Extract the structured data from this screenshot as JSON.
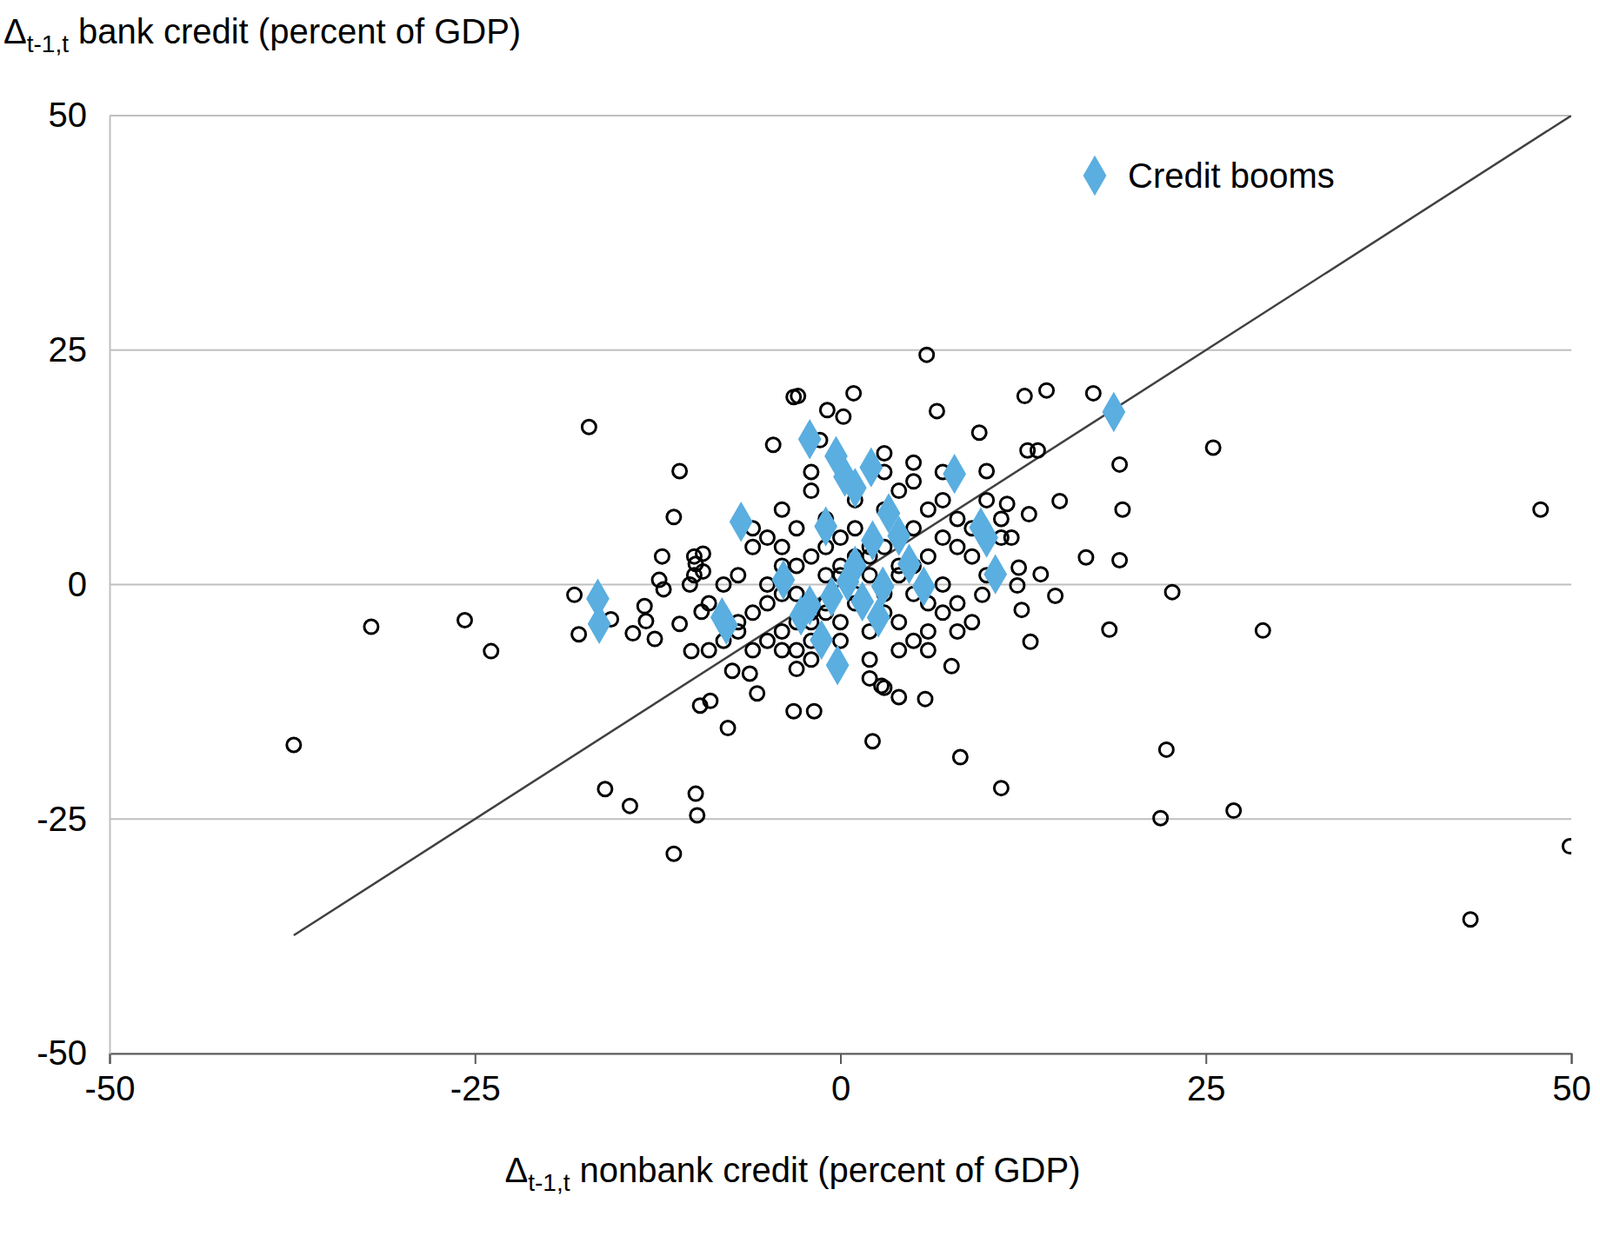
{
  "chart_data": {
    "type": "scatter",
    "x_label": "Δt-1,t nonbank credit (percent of GDP)",
    "y_label": "Δt-1,t bank credit (percent of GDP)",
    "xlim": [
      -50,
      50
    ],
    "ylim": [
      -50,
      50
    ],
    "xticks": [
      -50,
      -25,
      0,
      25,
      50
    ],
    "yticks": [
      -50,
      -25,
      0,
      25,
      50
    ],
    "grid": "y",
    "legend": "upper right",
    "series": [
      {
        "type": "line",
        "color": "#404040",
        "line_style": "solid",
        "x": [
          -37.4,
          50
        ],
        "values": [
          -37.4,
          50
        ]
      },
      {
        "type": "scatter",
        "color": "#000000",
        "marker": "circle",
        "x": [
          -37.4,
          -32.1,
          -25.7,
          -23.9,
          -17.2,
          -18.2,
          -17.9,
          -15.7,
          -16.1,
          -14.4,
          -14.2,
          -13.4,
          -13.3,
          -12.4,
          -12.2,
          -12.1,
          -12.7,
          -11.0,
          -11.4,
          -11.0,
          -11.4,
          -9.9,
          -9.8,
          -9.6,
          -8.9,
          -7.7,
          -10.2,
          -9.5,
          -10.3,
          -9.9,
          -9.4,
          -9.4,
          -7.4,
          -6.2,
          -5.7,
          -4.6,
          -3.2,
          -2.9,
          -3.2,
          -1.8,
          -0.9,
          0.2,
          0.9,
          -1.4,
          2.2,
          2.8,
          5.9,
          6.6,
          9.5,
          12.6,
          14.1,
          17.3,
          5.8,
          8.2,
          11.0,
          12.8,
          13.5,
          15.0,
          16.8,
          12.9,
          13.7,
          14.7,
          12.4,
          13.0,
          19.1,
          19.3,
          19.1,
          18.4,
          25.5,
          22.7,
          22.3,
          21.9,
          26.9,
          28.9,
          47.9,
          49.9,
          43.1,
          7.6,
          9.7,
          10.0,
          11.4,
          12.1,
          12.2,
          11.7,
          -5,
          -4,
          -3,
          -2,
          -1,
          0,
          1,
          2,
          3,
          4,
          5,
          6,
          7,
          -6,
          -5,
          -4,
          -3,
          -2,
          -1,
          0,
          1,
          2,
          3,
          4,
          5,
          6,
          7,
          8,
          -7,
          -6,
          -5,
          -4,
          -3,
          -2,
          -1,
          0,
          1,
          2,
          3,
          4,
          5,
          6,
          7,
          8,
          -8,
          -7,
          -6,
          -5,
          -4,
          -3,
          -2,
          -1,
          0,
          1,
          2,
          3,
          4,
          5,
          6,
          7,
          8,
          9,
          -3,
          -2,
          -1,
          0,
          1,
          2,
          3,
          4,
          5,
          -4,
          -8,
          -9,
          9,
          10,
          3,
          5,
          7,
          -2,
          4,
          3,
          2,
          -2,
          -3,
          -4,
          6,
          8,
          9,
          10,
          11,
          11,
          -6,
          -7,
          -9,
          -10,
          -10
        ],
        "values": [
          -17.1,
          -4.5,
          -3.8,
          -7.1,
          16.8,
          -1.1,
          -5.3,
          -3.7,
          -21.8,
          -23.6,
          -5.2,
          -2.3,
          -3.9,
          0.5,
          3.0,
          -0.5,
          -5.8,
          12.1,
          7.2,
          -4.2,
          -28.7,
          -22.3,
          -24.6,
          -12.9,
          -12.4,
          -15.3,
          -7.1,
          -2.9,
          0,
          2.2,
          3.3,
          1.4,
          -9.2,
          -9.5,
          -11.6,
          14.9,
          20,
          20.1,
          -13.5,
          -13.5,
          18.6,
          17.9,
          20.4,
          15.4,
          -16.7,
          -10.8,
          24.5,
          18.5,
          16.2,
          20.1,
          20.7,
          20.4,
          -12.2,
          -18.4,
          -21.7,
          14.3,
          14.3,
          8.9,
          2.9,
          7.5,
          1.1,
          -1.2,
          -2.7,
          -6.1,
          12.8,
          8.0,
          2.6,
          -4.8,
          14.6,
          -0.8,
          -17.6,
          -24.9,
          -24.1,
          -4.9,
          8.0,
          -27.9,
          -35.7,
          -8.7,
          -1.1,
          12.1,
          8.6,
          -0.1,
          1.8,
          5.0,
          0,
          2,
          -1,
          3,
          -2,
          1,
          -1,
          4,
          -3,
          2,
          -1,
          3,
          0,
          -3,
          5,
          -5,
          6,
          -6,
          7,
          -4,
          9,
          -5,
          8,
          -4,
          6,
          -5,
          5,
          -2,
          1,
          4,
          -6,
          8,
          -7,
          10,
          -3,
          5,
          3,
          1,
          -1,
          10,
          -6,
          8,
          -3,
          4,
          0,
          -4,
          6,
          -2,
          4,
          2,
          -4,
          4,
          -6,
          6,
          -8,
          12,
          -7,
          11,
          -2,
          9,
          7,
          3,
          -4,
          -3,
          1,
          2,
          -2,
          3,
          4,
          1,
          2,
          -1,
          -6,
          -7,
          -4,
          1,
          14,
          13,
          12,
          12,
          -12,
          -11,
          -10,
          -8,
          -9,
          -7,
          -7,
          -5,
          6,
          9,
          5,
          7,
          -7,
          -5,
          -2,
          1,
          3
        ]
      },
      {
        "type": "scatter",
        "name": "Credit booms",
        "color": "#5aaee0",
        "marker": "diamond",
        "x": [
          18.7,
          -2.1,
          -0.3,
          0.3,
          2.1,
          1.0,
          7.8,
          -6.8,
          -1.0,
          3.3,
          9.6,
          10.0,
          10.6,
          -16.6,
          -16.5,
          -8.1,
          -7.8,
          -3.9,
          -2.7,
          -2.1,
          -1.3,
          -0.2,
          0.5,
          1.0,
          1.5,
          2.6,
          4.0,
          4.7,
          5.7,
          2.9,
          -0.6,
          2.2
        ],
        "values": [
          18.4,
          15.5,
          13.7,
          11.5,
          12.5,
          10.3,
          11.8,
          6.7,
          6.2,
          7.6,
          6.1,
          5.0,
          1.1,
          -1.5,
          -4.2,
          -3.5,
          -4.3,
          0.5,
          -3.3,
          -2.2,
          -5.9,
          -8.6,
          0.3,
          2.0,
          -1.8,
          -3.5,
          5.2,
          2.2,
          -0.2,
          -0.2,
          -1.3,
          4.7
        ]
      }
    ]
  }
}
